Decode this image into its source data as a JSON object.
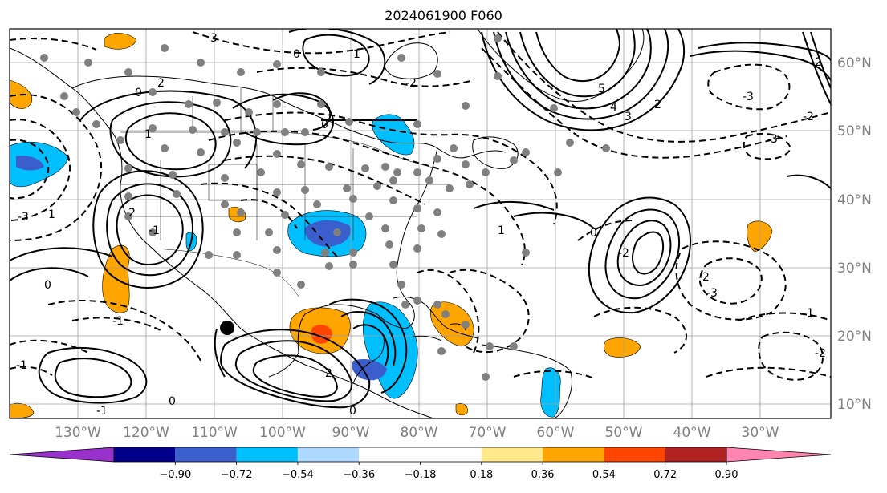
{
  "title": "2024061900 F060",
  "lon_labels": [
    "130°W",
    "120°W",
    "110°W",
    "100°W",
    "90°W",
    "80°W",
    "70°W",
    "60°W",
    "50°W",
    "40°W",
    "30°W"
  ],
  "lat_labels": [
    "60°N",
    "50°N",
    "40°N",
    "30°N",
    "20°N",
    "10°N"
  ],
  "colorbar": {
    "colors": [
      "#9932cc",
      "#00008b",
      "#3a5fcd",
      "#00bfff",
      "#add8ff",
      "#ffffff",
      "#ffffff",
      "#ffe98a",
      "#ffa500",
      "#ff4500",
      "#b22222",
      "#ff85b0"
    ],
    "tick_labels": [
      "−0.90",
      "−0.72",
      "−0.54",
      "−0.36",
      "−0.18",
      "0.18",
      "0.36",
      "0.54",
      "0.72",
      "0.90"
    ]
  },
  "contour_labels": [
    {
      "text": "3"
    },
    {
      "text": "0"
    },
    {
      "text": "1"
    },
    {
      "text": "-2"
    },
    {
      "text": "0"
    },
    {
      "text": "2"
    },
    {
      "text": "1"
    },
    {
      "text": "0"
    },
    {
      "text": "5"
    },
    {
      "text": "4"
    },
    {
      "text": "3"
    },
    {
      "text": "2"
    },
    {
      "text": "-3"
    },
    {
      "text": "-2"
    },
    {
      "text": "-3"
    },
    {
      "text": "2"
    },
    {
      "text": "1"
    },
    {
      "text": "-1"
    },
    {
      "text": "0"
    },
    {
      "text": "-2"
    },
    {
      "text": "-2"
    },
    {
      "text": "-3"
    },
    {
      "text": "1"
    },
    {
      "text": "-1"
    },
    {
      "text": "2"
    },
    {
      "text": "0"
    },
    {
      "text": "0"
    },
    {
      "text": "-1"
    },
    {
      "text": "0"
    },
    {
      "text": "-1"
    },
    {
      "text": "-2"
    },
    {
      "text": "1"
    },
    {
      "text": "2"
    },
    {
      "text": "-3"
    }
  ],
  "colors": {
    "coast": "#000000",
    "grid": "#808080",
    "marker": "#808080"
  }
}
